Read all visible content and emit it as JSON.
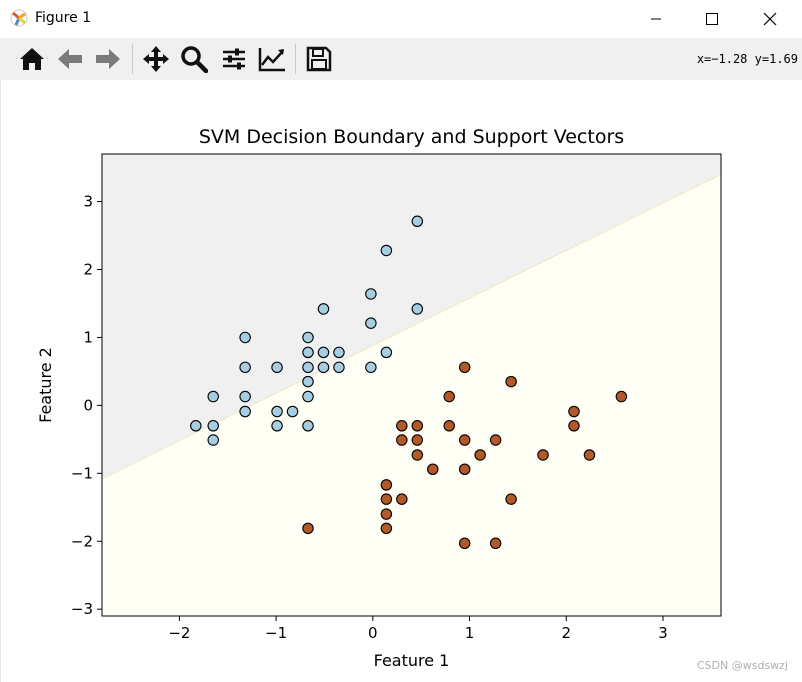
{
  "window": {
    "title": "Figure 1"
  },
  "toolbar": {
    "tools": [
      {
        "name": "home-icon"
      },
      {
        "name": "back-arrow-icon"
      },
      {
        "name": "forward-arrow-icon"
      },
      {
        "name": "pan-icon"
      },
      {
        "name": "zoom-icon"
      },
      {
        "name": "subplots-config-icon"
      },
      {
        "name": "edit-axis-icon"
      },
      {
        "name": "save-icon"
      }
    ],
    "coords": {
      "x_label": "x=",
      "x_value": "−1.28",
      "y_label": "y=",
      "y_value": "1.69"
    }
  },
  "watermark": "CSDN @wsdswzj",
  "chart_data": {
    "type": "scatter",
    "title": "SVM Decision Boundary and Support Vectors",
    "xlabel": "Feature 1",
    "ylabel": "Feature 2",
    "xlim": [
      -2.8,
      3.6
    ],
    "ylim": [
      -3.1,
      3.7
    ],
    "xticks": [
      -2,
      -1,
      0,
      1,
      2,
      3
    ],
    "xtick_labels": [
      "−2",
      "−1",
      "0",
      "1",
      "2",
      "3"
    ],
    "yticks": [
      -3,
      -2,
      -1,
      0,
      1,
      2,
      3
    ],
    "ytick_labels": [
      "−3",
      "−2",
      "−1",
      "0",
      "1",
      "2",
      "3"
    ],
    "decision_boundary": {
      "from": [
        -2.8,
        -1.08
      ],
      "to": [
        3.6,
        3.4
      ]
    },
    "regions": {
      "upper": "#f0f0f0",
      "lower": "#fffff5"
    },
    "series": [
      {
        "color": "#a6cee3",
        "points": [
          [
            -1.83,
            -0.3
          ],
          [
            -1.65,
            0.13
          ],
          [
            -1.65,
            -0.3
          ],
          [
            -1.65,
            -0.51
          ],
          [
            -1.32,
            1.0
          ],
          [
            -1.32,
            0.56
          ],
          [
            -1.32,
            0.13
          ],
          [
            -1.32,
            -0.09
          ],
          [
            -0.99,
            0.56
          ],
          [
            -0.99,
            -0.09
          ],
          [
            -0.99,
            -0.3
          ],
          [
            -0.83,
            -0.09
          ],
          [
            -0.67,
            1.0
          ],
          [
            -0.67,
            0.78
          ],
          [
            -0.67,
            0.56
          ],
          [
            -0.67,
            0.35
          ],
          [
            -0.67,
            0.13
          ],
          [
            -0.67,
            -0.3
          ],
          [
            -0.51,
            1.42
          ],
          [
            -0.51,
            0.78
          ],
          [
            -0.51,
            0.56
          ],
          [
            -0.35,
            0.78
          ],
          [
            -0.35,
            0.56
          ],
          [
            -0.02,
            1.64
          ],
          [
            -0.02,
            1.21
          ],
          [
            -0.02,
            0.56
          ],
          [
            0.14,
            2.28
          ],
          [
            0.14,
            0.78
          ],
          [
            0.46,
            2.71
          ],
          [
            0.46,
            1.42
          ]
        ]
      },
      {
        "color": "#b15928",
        "points": [
          [
            -0.67,
            -1.81
          ],
          [
            0.14,
            -1.17
          ],
          [
            0.14,
            -1.38
          ],
          [
            0.14,
            -1.6
          ],
          [
            0.14,
            -1.81
          ],
          [
            0.3,
            -0.3
          ],
          [
            0.3,
            -0.51
          ],
          [
            0.3,
            -1.38
          ],
          [
            0.46,
            -0.3
          ],
          [
            0.46,
            -0.51
          ],
          [
            0.46,
            -0.73
          ],
          [
            0.62,
            -0.94
          ],
          [
            0.79,
            0.13
          ],
          [
            0.79,
            -0.3
          ],
          [
            0.95,
            0.56
          ],
          [
            0.95,
            -0.51
          ],
          [
            0.95,
            -0.94
          ],
          [
            0.95,
            -2.03
          ],
          [
            1.11,
            -0.73
          ],
          [
            1.27,
            -0.51
          ],
          [
            1.27,
            -2.03
          ],
          [
            1.43,
            0.35
          ],
          [
            1.43,
            -1.38
          ],
          [
            1.76,
            -0.73
          ],
          [
            2.08,
            -0.09
          ],
          [
            2.08,
            -0.3
          ],
          [
            2.24,
            -0.73
          ],
          [
            2.57,
            0.13
          ]
        ]
      }
    ]
  }
}
